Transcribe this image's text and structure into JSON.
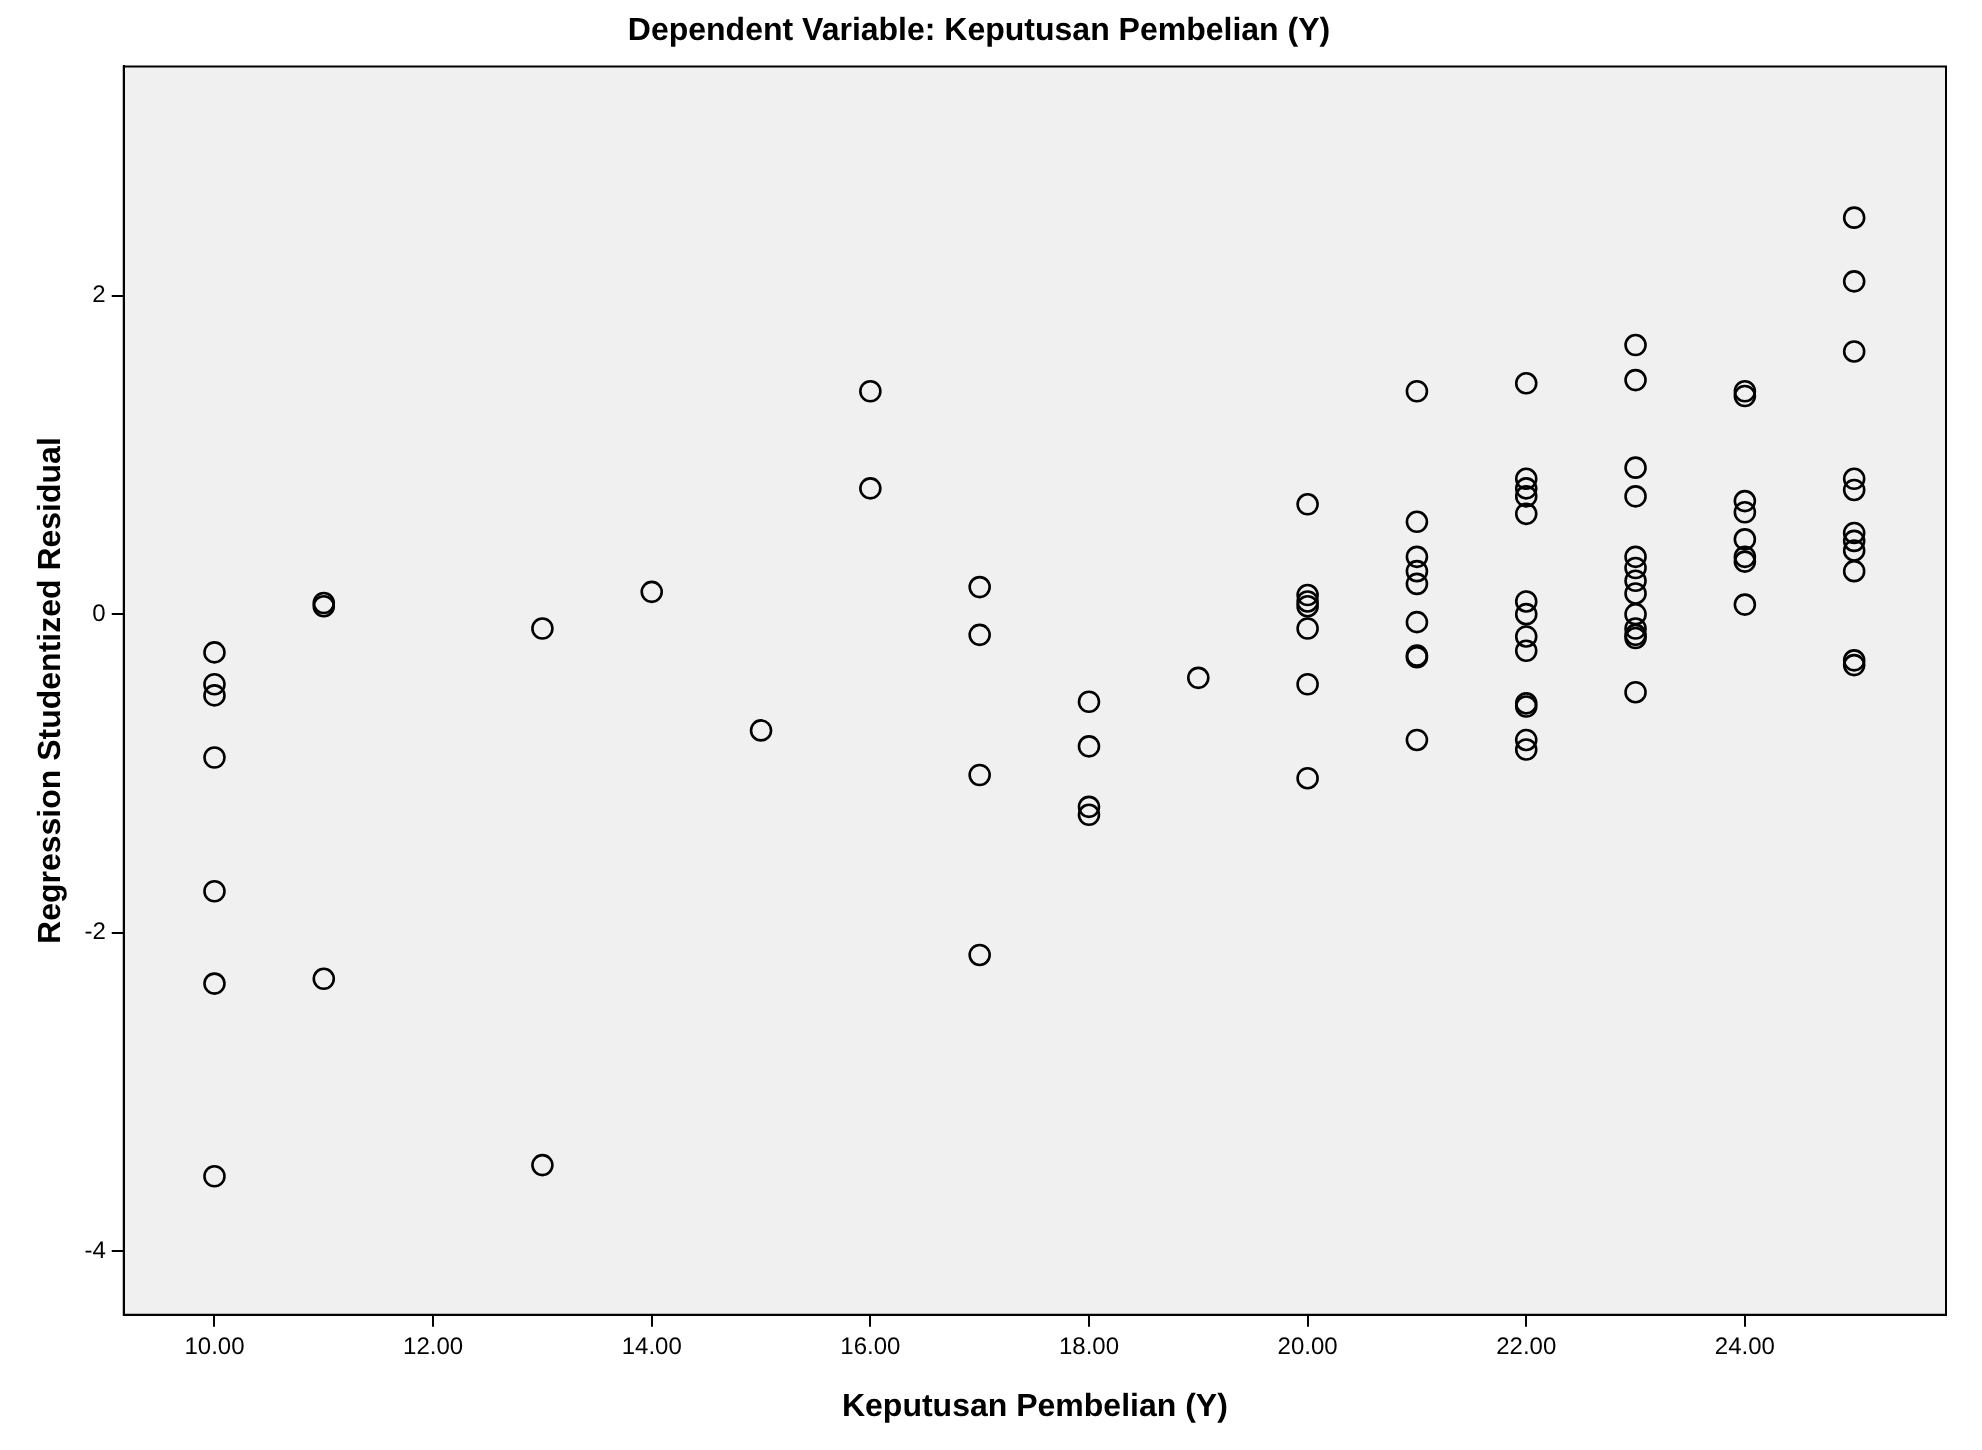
{
  "chart_data": {
    "type": "scatter",
    "title": "Dependent Variable: Keputusan Pembelian (Y)",
    "xlabel": "Keputusan Pembelian (Y)",
    "ylabel": "Regression Studentized Residual",
    "xlim": [
      9.17,
      25.84
    ],
    "ylim": [
      -4.4,
      3.44
    ],
    "xticks": [
      {
        "value": 10,
        "label": "10.00"
      },
      {
        "value": 12,
        "label": "12.00"
      },
      {
        "value": 14,
        "label": "14.00"
      },
      {
        "value": 16,
        "label": "16.00"
      },
      {
        "value": 18,
        "label": "18.00"
      },
      {
        "value": 20,
        "label": "20.00"
      },
      {
        "value": 22,
        "label": "22.00"
      },
      {
        "value": 24,
        "label": "24.00"
      }
    ],
    "yticks": [
      -4,
      -2,
      0,
      2
    ],
    "grid": false,
    "marker": "circle",
    "legend": false,
    "series": [
      {
        "color": "#000000",
        "x": [
          10,
          10,
          10,
          10,
          10,
          10,
          10,
          11,
          11,
          11,
          13,
          13,
          14,
          15,
          16,
          16,
          17,
          17,
          17,
          17,
          18,
          18,
          18,
          18,
          19,
          20,
          20,
          20,
          20,
          20,
          20,
          20,
          21,
          21,
          21,
          21,
          21,
          21,
          21,
          21,
          21,
          22,
          22,
          22,
          22,
          22,
          22,
          22,
          22,
          22,
          22,
          22,
          22,
          22,
          23,
          23,
          23,
          23,
          23,
          23,
          23,
          23,
          23,
          23,
          23,
          23,
          23,
          24,
          24,
          24,
          24,
          24,
          24,
          24,
          24,
          25,
          25,
          25,
          25,
          25,
          25,
          25,
          25,
          25,
          25,
          25
        ],
        "values": [
          -0.24,
          -0.44,
          -0.51,
          -0.9,
          -1.74,
          -2.32,
          -3.53,
          0.07,
          0.05,
          -2.29,
          -0.09,
          -3.46,
          0.14,
          -0.73,
          1.4,
          0.79,
          0.17,
          -0.13,
          -1.01,
          -2.14,
          -0.55,
          -0.83,
          -1.21,
          -1.26,
          -0.4,
          0.69,
          0.12,
          0.08,
          0.05,
          -0.09,
          -0.44,
          -1.03,
          1.4,
          0.58,
          0.36,
          0.27,
          0.19,
          -0.05,
          -0.26,
          -0.27,
          -0.79,
          1.45,
          0.85,
          0.79,
          0.74,
          0.63,
          0.08,
          0,
          -0.14,
          -0.23,
          -0.56,
          -0.58,
          -0.79,
          -0.85,
          1.69,
          1.47,
          0.92,
          0.74,
          0.36,
          0.29,
          0.21,
          0.13,
          0,
          -0.09,
          -0.13,
          -0.15,
          -0.49,
          1.4,
          1.37,
          0.71,
          0.64,
          0.47,
          0.36,
          0.33,
          0.06,
          2.49,
          2.09,
          1.65,
          0.85,
          0.78,
          0.51,
          0.46,
          0.4,
          0.27,
          -0.29,
          -0.32
        ]
      }
    ]
  }
}
